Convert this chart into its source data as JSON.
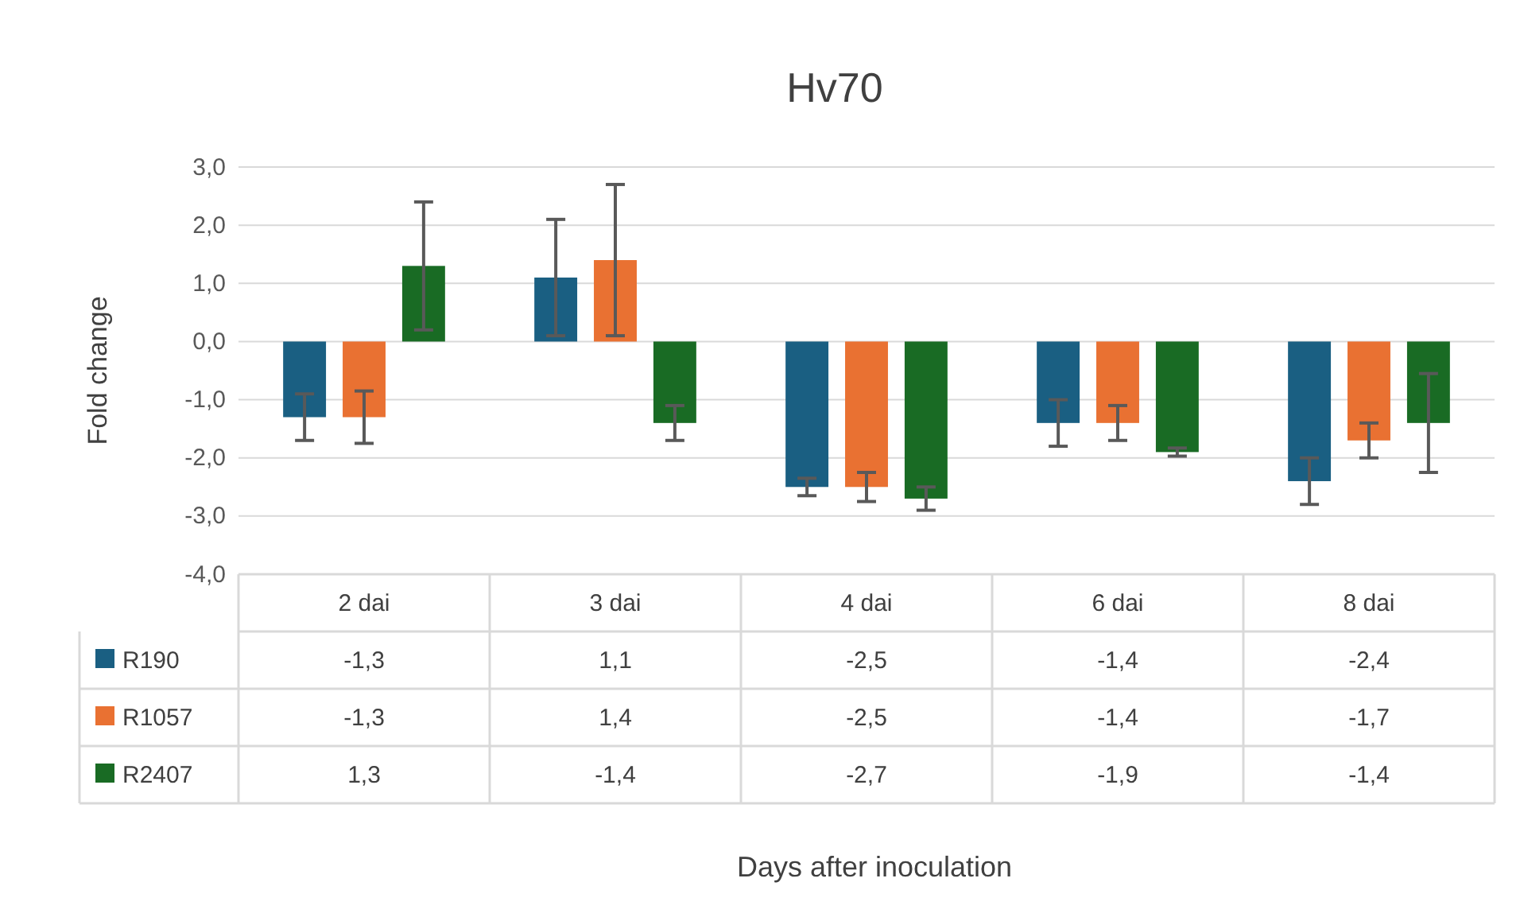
{
  "chart_data": {
    "type": "bar",
    "title": "Hv70",
    "annotations": [
      "Days after inoculation"
    ],
    "ylabel": "Fold change",
    "categories": [
      "2 dai",
      "3 dai",
      "4 dai",
      "6 dai",
      "8 dai"
    ],
    "series": [
      {
        "name": "R190",
        "color": "#1a5f82",
        "values": [
          -1.3,
          1.1,
          -2.5,
          -1.4,
          -2.4
        ],
        "errors": [
          0.4,
          1.0,
          0.15,
          0.4,
          0.4
        ],
        "value_labels": [
          "-1,3",
          "1,1",
          "-2,5",
          "-1,4",
          "-2,4"
        ]
      },
      {
        "name": "R1057",
        "color": "#e97132",
        "values": [
          -1.3,
          1.4,
          -2.5,
          -1.4,
          -1.7
        ],
        "errors": [
          0.45,
          1.3,
          0.25,
          0.3,
          0.3
        ],
        "value_labels": [
          "-1,3",
          "1,4",
          "-2,5",
          "-1,4",
          "-1,7"
        ]
      },
      {
        "name": "R2407",
        "color": "#196b24",
        "values": [
          1.3,
          -1.4,
          -2.7,
          -1.9,
          -1.4
        ],
        "errors": [
          1.1,
          0.3,
          0.2,
          0.07,
          0.85
        ],
        "value_labels": [
          "1,3",
          "-1,4",
          "-2,7",
          "-1,9",
          "-1,4"
        ]
      }
    ],
    "ylim": [
      -4,
      3
    ],
    "yticks": [
      {
        "value": -4,
        "label": "-4,0"
      },
      {
        "value": -3,
        "label": "-3,0"
      },
      {
        "value": -2,
        "label": "-2,0"
      },
      {
        "value": -1,
        "label": "-1,0"
      },
      {
        "value": 0,
        "label": "0,0"
      },
      {
        "value": 1,
        "label": "1,0"
      },
      {
        "value": 2,
        "label": "2,0"
      },
      {
        "value": 3,
        "label": "3,0"
      }
    ],
    "grid": "y",
    "legend": "bottom left"
  }
}
